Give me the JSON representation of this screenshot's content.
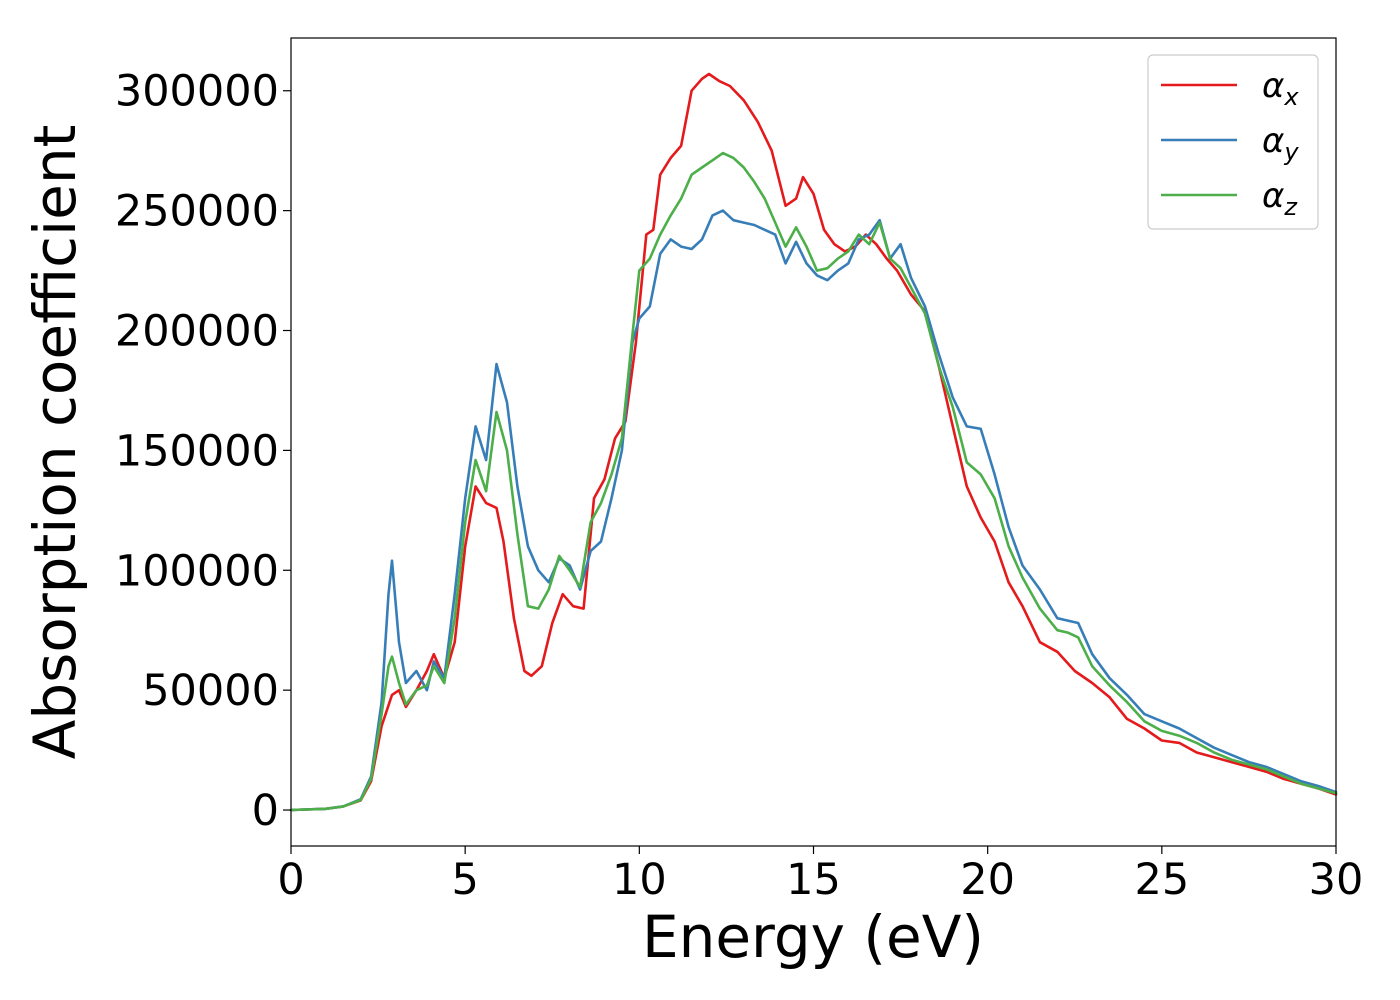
{
  "chart_data": {
    "type": "line",
    "title": "",
    "xlabel": "Energy (eV)",
    "ylabel": "Absorption coefficient",
    "xlim": [
      0,
      30
    ],
    "ylim": [
      -15000,
      322000
    ],
    "xticks": [
      0,
      5,
      10,
      15,
      20,
      25,
      30
    ],
    "xtick_labels": [
      "0",
      "5",
      "10",
      "15",
      "20",
      "25",
      "30"
    ],
    "yticks": [
      0,
      50000,
      100000,
      150000,
      200000,
      250000,
      300000
    ],
    "ytick_labels": [
      "0",
      "50000",
      "100000",
      "150000",
      "200000",
      "250000",
      "300000"
    ],
    "grid": false,
    "legend_position": "top-right",
    "series": [
      {
        "name": "α_x",
        "legend_symbol": "α",
        "legend_subscript": "x",
        "color": "#e41a1c",
        "x": [
          0,
          1,
          1.5,
          2,
          2.3,
          2.6,
          2.9,
          3.1,
          3.3,
          3.6,
          3.9,
          4.1,
          4.4,
          4.7,
          5.0,
          5.3,
          5.6,
          5.9,
          6.1,
          6.4,
          6.7,
          6.9,
          7.2,
          7.5,
          7.8,
          8.1,
          8.4,
          8.7,
          9.0,
          9.3,
          9.6,
          9.9,
          10.2,
          10.4,
          10.6,
          10.9,
          11.2,
          11.5,
          11.8,
          12.0,
          12.3,
          12.6,
          13.0,
          13.4,
          13.8,
          14.2,
          14.5,
          14.7,
          15.0,
          15.3,
          15.6,
          15.9,
          16.2,
          16.5,
          16.8,
          17.1,
          17.4,
          17.8,
          18.2,
          18.6,
          19.0,
          19.4,
          19.8,
          20.2,
          20.6,
          21.0,
          21.5,
          22.0,
          22.5,
          23.0,
          23.5,
          24.0,
          24.5,
          25.0,
          25.5,
          26.0,
          26.5,
          27.0,
          27.5,
          28.0,
          28.5,
          29.0,
          29.5,
          30
        ],
        "y": [
          0,
          500,
          1500,
          4000,
          12000,
          35000,
          48000,
          50000,
          43000,
          50000,
          58000,
          65000,
          55000,
          70000,
          110000,
          135000,
          128000,
          126000,
          112000,
          80000,
          58000,
          56000,
          60000,
          78000,
          90000,
          85000,
          84000,
          130000,
          138000,
          155000,
          162000,
          195000,
          240000,
          242000,
          265000,
          272000,
          277000,
          300000,
          305000,
          307000,
          304000,
          302000,
          296000,
          287000,
          275000,
          252000,
          255000,
          264000,
          257000,
          242000,
          236000,
          233000,
          235000,
          240000,
          236000,
          230000,
          225000,
          215000,
          208000,
          185000,
          160000,
          135000,
          122000,
          112000,
          95000,
          85000,
          70000,
          66000,
          58000,
          53000,
          47000,
          38000,
          34000,
          29000,
          28000,
          24000,
          22000,
          20000,
          18000,
          16000,
          13000,
          11000,
          9000,
          6500
        ]
      },
      {
        "name": "α_y",
        "legend_symbol": "α",
        "legend_subscript": "y",
        "color": "#377eb8",
        "x": [
          0,
          1,
          1.5,
          2,
          2.3,
          2.6,
          2.8,
          2.9,
          3.1,
          3.3,
          3.6,
          3.9,
          4.1,
          4.4,
          4.7,
          5.0,
          5.3,
          5.6,
          5.9,
          6.2,
          6.5,
          6.8,
          7.1,
          7.4,
          7.7,
          8.0,
          8.3,
          8.6,
          8.9,
          9.2,
          9.5,
          9.8,
          10.0,
          10.3,
          10.6,
          10.9,
          11.2,
          11.5,
          11.8,
          12.1,
          12.4,
          12.7,
          13.0,
          13.3,
          13.6,
          13.9,
          14.2,
          14.5,
          14.8,
          15.1,
          15.4,
          15.7,
          16.0,
          16.3,
          16.6,
          16.9,
          17.2,
          17.5,
          17.8,
          18.2,
          18.6,
          19.0,
          19.4,
          19.8,
          20.2,
          20.6,
          21.0,
          21.5,
          22.0,
          22.3,
          22.6,
          23.0,
          23.5,
          24.0,
          24.5,
          25.0,
          25.5,
          26.0,
          26.5,
          27.0,
          27.5,
          28.0,
          28.5,
          29.0,
          29.5,
          30
        ],
        "y": [
          0,
          500,
          1500,
          4500,
          14000,
          45000,
          90000,
          104000,
          70000,
          53000,
          58000,
          50000,
          62000,
          55000,
          90000,
          130000,
          160000,
          146000,
          186000,
          170000,
          135000,
          110000,
          100000,
          95000,
          105000,
          102000,
          92000,
          108000,
          112000,
          130000,
          150000,
          195000,
          205000,
          210000,
          232000,
          238000,
          235000,
          234000,
          238000,
          248000,
          250000,
          246000,
          245000,
          244000,
          242000,
          240000,
          228000,
          237000,
          228000,
          223000,
          221000,
          225000,
          228000,
          238000,
          240000,
          246000,
          230000,
          236000,
          222000,
          210000,
          190000,
          172000,
          160000,
          159000,
          140000,
          118000,
          102000,
          92000,
          80000,
          79000,
          78000,
          65000,
          55000,
          48000,
          40000,
          37000,
          34000,
          30000,
          26000,
          23000,
          20000,
          18000,
          15000,
          12000,
          10000,
          7500
        ]
      },
      {
        "name": "α_z",
        "legend_symbol": "α",
        "legend_subscript": "z",
        "color": "#4daf4a",
        "x": [
          0,
          1,
          1.5,
          2,
          2.3,
          2.6,
          2.8,
          2.9,
          3.1,
          3.3,
          3.6,
          3.9,
          4.1,
          4.4,
          4.7,
          5.0,
          5.3,
          5.6,
          5.9,
          6.2,
          6.5,
          6.8,
          7.1,
          7.4,
          7.7,
          8.0,
          8.3,
          8.6,
          8.9,
          9.2,
          9.5,
          9.8,
          10.0,
          10.3,
          10.6,
          10.9,
          11.2,
          11.5,
          11.8,
          12.1,
          12.4,
          12.7,
          13.0,
          13.3,
          13.6,
          13.9,
          14.2,
          14.5,
          14.8,
          15.1,
          15.4,
          15.7,
          16.0,
          16.3,
          16.6,
          16.9,
          17.2,
          17.5,
          17.8,
          18.2,
          18.6,
          19.0,
          19.4,
          19.8,
          20.2,
          20.6,
          21.0,
          21.5,
          22.0,
          22.3,
          22.6,
          23.0,
          23.5,
          24.0,
          24.5,
          25.0,
          25.5,
          26.0,
          26.5,
          27.0,
          27.5,
          28.0,
          28.5,
          29.0,
          29.5,
          30
        ],
        "y": [
          0,
          500,
          1500,
          4200,
          13000,
          40000,
          60000,
          64000,
          53000,
          44000,
          50000,
          52000,
          60000,
          53000,
          80000,
          120000,
          146000,
          133000,
          166000,
          150000,
          115000,
          85000,
          84000,
          92000,
          106000,
          100000,
          93000,
          120000,
          128000,
          140000,
          155000,
          198000,
          225000,
          230000,
          240000,
          248000,
          255000,
          265000,
          268000,
          271000,
          274000,
          272000,
          268000,
          262000,
          255000,
          245000,
          235000,
          243000,
          235000,
          225000,
          226000,
          230000,
          233000,
          240000,
          236000,
          245000,
          230000,
          226000,
          218000,
          207000,
          185000,
          168000,
          145000,
          140000,
          130000,
          110000,
          97000,
          84000,
          75000,
          74000,
          72000,
          60000,
          52000,
          45000,
          37000,
          33000,
          31000,
          28000,
          24000,
          21000,
          19000,
          17000,
          14000,
          11000,
          9000,
          7000
        ]
      }
    ]
  }
}
